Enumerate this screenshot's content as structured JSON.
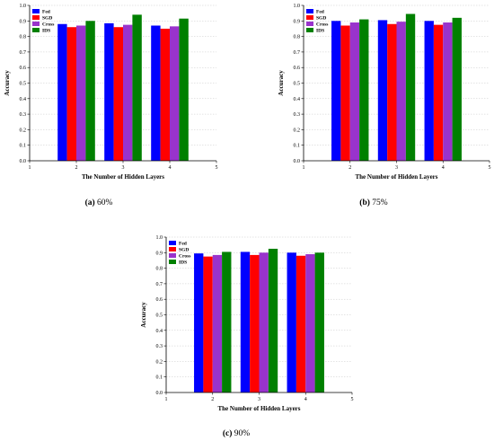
{
  "series_colors": [
    "#0000ff",
    "#ff0000",
    "#9933cc",
    "#008000"
  ],
  "chart_data": [
    {
      "type": "bar",
      "x": [
        2,
        3,
        4
      ],
      "xlim": [
        1,
        5
      ],
      "xticks": [
        "1",
        "2",
        "3",
        "4",
        "5"
      ],
      "ylim": [
        0,
        1.0
      ],
      "yticks": [
        "0.0",
        "0.1",
        "0.2",
        "0.3",
        "0.4",
        "0.5",
        "0.6",
        "0.7",
        "0.8",
        "0.9",
        "1.0"
      ],
      "xlabel": "The Number of Hidden Layers",
      "ylabel": "Accuracy",
      "grid": true,
      "legend_position": "top-left",
      "caption": {
        "letter": "(a)",
        "text": "60%"
      },
      "series": [
        {
          "name": "Fed",
          "values": [
            0.88,
            0.885,
            0.87
          ]
        },
        {
          "name": "SGD",
          "values": [
            0.86,
            0.86,
            0.85
          ]
        },
        {
          "name": "Cross",
          "values": [
            0.87,
            0.875,
            0.865
          ]
        },
        {
          "name": "IDS",
          "values": [
            0.9,
            0.94,
            0.915
          ]
        }
      ]
    },
    {
      "type": "bar",
      "x": [
        2,
        3,
        4
      ],
      "xlim": [
        1,
        5
      ],
      "xticks": [
        "1",
        "2",
        "3",
        "4",
        "5"
      ],
      "ylim": [
        0,
        1.0
      ],
      "yticks": [
        "0.0",
        "0.1",
        "0.2",
        "0.3",
        "0.4",
        "0.5",
        "0.6",
        "0.7",
        "0.8",
        "0.9",
        "1.0"
      ],
      "xlabel": "The Number of Hidden Layers",
      "ylabel": "Accuracy",
      "grid": true,
      "legend_position": "top-left",
      "caption": {
        "letter": "(b)",
        "text": "75%"
      },
      "series": [
        {
          "name": "Fed",
          "values": [
            0.9,
            0.905,
            0.9
          ]
        },
        {
          "name": "SGD",
          "values": [
            0.87,
            0.88,
            0.875
          ]
        },
        {
          "name": "Cross",
          "values": [
            0.89,
            0.895,
            0.89
          ]
        },
        {
          "name": "IDS",
          "values": [
            0.91,
            0.945,
            0.92
          ]
        }
      ]
    },
    {
      "type": "bar",
      "x": [
        2,
        3,
        4
      ],
      "xlim": [
        1,
        5
      ],
      "xticks": [
        "1",
        "2",
        "3",
        "4",
        "5"
      ],
      "ylim": [
        0,
        1.0
      ],
      "yticks": [
        "0.0",
        "0.1",
        "0.2",
        "0.3",
        "0.4",
        "0.5",
        "0.6",
        "0.7",
        "0.8",
        "0.9",
        "1.0"
      ],
      "xlabel": "The Number of Hidden Layers",
      "ylabel": "Accuracy",
      "grid": true,
      "legend_position": "top-left",
      "caption": {
        "letter": "(c)",
        "text": "90%"
      },
      "series": [
        {
          "name": "Fed",
          "values": [
            0.895,
            0.905,
            0.9
          ]
        },
        {
          "name": "SGD",
          "values": [
            0.875,
            0.885,
            0.88
          ]
        },
        {
          "name": "Cross",
          "values": [
            0.885,
            0.9,
            0.89
          ]
        },
        {
          "name": "IDS",
          "values": [
            0.905,
            0.925,
            0.9
          ]
        }
      ]
    }
  ]
}
